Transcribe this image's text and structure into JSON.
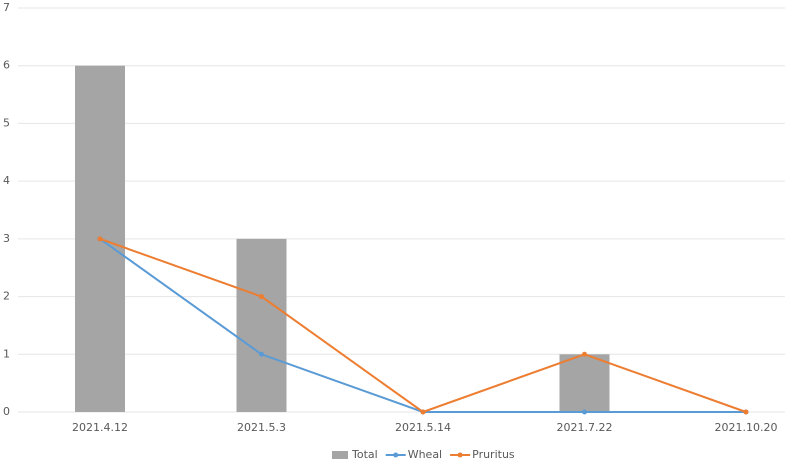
{
  "chart_data": {
    "type": "combo",
    "categories": [
      "2021.4.12",
      "2021.5.3",
      "2021.5.14",
      "2021.7.22",
      "2021.10.20"
    ],
    "series": [
      {
        "name": "Total",
        "type": "bar",
        "color": "#a5a5a5",
        "values": [
          6,
          3,
          0,
          1,
          0
        ]
      },
      {
        "name": "Wheal",
        "type": "line",
        "color": "#5b9bd5",
        "values": [
          3,
          1,
          0,
          0,
          0
        ]
      },
      {
        "name": "Pruritus",
        "type": "line",
        "color": "#ed7d31",
        "values": [
          3,
          2,
          0,
          1,
          0
        ]
      }
    ],
    "ylim": [
      0,
      7
    ],
    "yticks": [
      0,
      1,
      2,
      3,
      4,
      5,
      6,
      7
    ],
    "grid": true,
    "legend": "bottom"
  }
}
